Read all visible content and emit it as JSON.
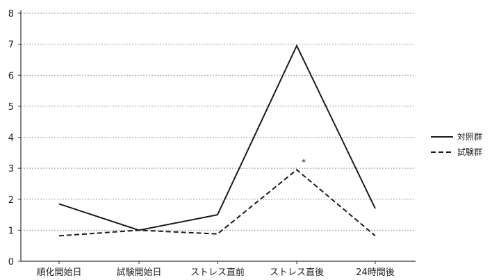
{
  "chart_data": {
    "type": "line",
    "categories": [
      "順化開始日",
      "試験開始日",
      "ストレス直前",
      "ストレス直後",
      "24時間後"
    ],
    "series": [
      {
        "name": "対照群",
        "values": [
          1.85,
          1.0,
          1.5,
          6.95,
          1.7
        ],
        "style": "solid",
        "color": "#1a1a1a"
      },
      {
        "name": "試験群",
        "values": [
          0.82,
          1.0,
          0.88,
          2.95,
          0.82
        ],
        "style": "dashed",
        "color": "#1a1a1a"
      }
    ],
    "ylim": [
      0,
      8
    ],
    "yticks": [
      0,
      1,
      2,
      3,
      4,
      5,
      6,
      7,
      8
    ],
    "grid": true,
    "legend": "right",
    "annotations": [
      {
        "text": "*",
        "category": "ストレス直後",
        "y": 3.1
      }
    ],
    "title": "",
    "xlabel": "",
    "ylabel": ""
  }
}
